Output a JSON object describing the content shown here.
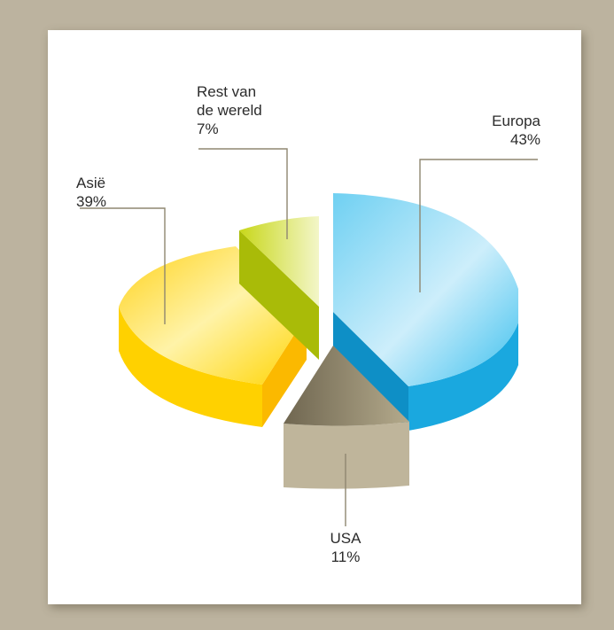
{
  "chart_data": {
    "type": "pie",
    "title": "",
    "slices": [
      {
        "label_lines": [
          "Europa"
        ],
        "value": 43,
        "value_label": "43%",
        "color": "#1fb3e6"
      },
      {
        "label_lines": [
          "USA"
        ],
        "value": 11,
        "value_label": "11%",
        "color": "#bfb59b"
      },
      {
        "label_lines": [
          "Asië"
        ],
        "value": 39,
        "value_label": "39%",
        "color": "#ffcc00"
      },
      {
        "label_lines": [
          "Rest van",
          "de wereld"
        ],
        "value": 7,
        "value_label": "7%",
        "color": "#b7c90a"
      }
    ]
  }
}
